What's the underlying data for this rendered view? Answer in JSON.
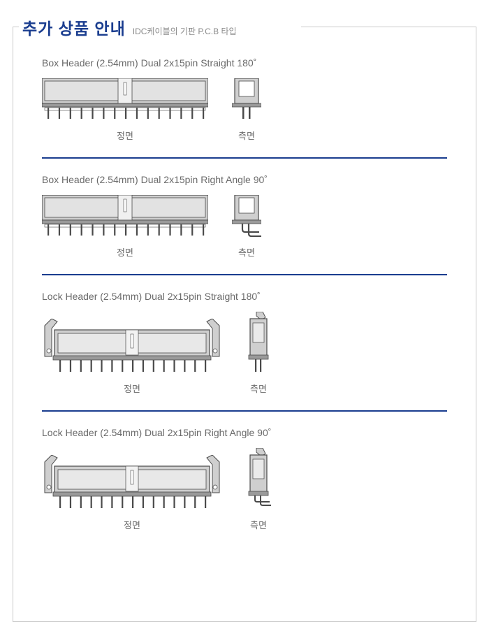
{
  "header": {
    "title": "추가 상품 안내",
    "subtitle": "IDC케이블의 기판 P.C.B 타입"
  },
  "labels": {
    "front": "정면",
    "side": "측면"
  },
  "colors": {
    "title": "#1a3d8f",
    "subtitle": "#8a8a8a",
    "text": "#6a6a6a",
    "border": "#c9c9c9",
    "divider": "#1a3d8f",
    "connector_outline": "#4a4a4a",
    "connector_fill": "#cfcfcf",
    "connector_dark": "#9a9a9a",
    "pin": "#4a4a4a"
  },
  "products": [
    {
      "title": "Box Header (2.54mm) Dual 2x15pin Straight 180˚",
      "type": "box",
      "angle": "straight"
    },
    {
      "title": "Box Header (2.54mm) Dual 2x15pin Right Angle 90˚",
      "type": "box",
      "angle": "right"
    },
    {
      "title": "Lock Header (2.54mm) Dual 2x15pin Straight 180˚",
      "type": "lock",
      "angle": "straight"
    },
    {
      "title": "Lock Header (2.54mm) Dual 2x15pin Right Angle 90˚",
      "type": "lock",
      "angle": "right"
    }
  ],
  "connector": {
    "pin_count": 15,
    "box_front_w": 238,
    "box_front_h": 60,
    "box_side_w": 42,
    "box_side_h": 60,
    "lock_front_w": 258,
    "lock_front_h": 78,
    "lock_side_w": 36,
    "lock_side_h": 88
  }
}
